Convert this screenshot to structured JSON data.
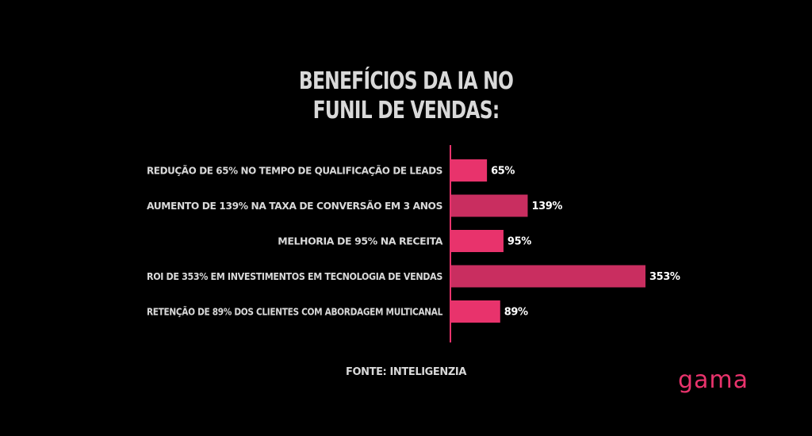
{
  "chart_data": {
    "type": "bar",
    "orientation": "horizontal",
    "title_lines": [
      "BENEFÍCIOS DA IA NO",
      "FUNIL DE VENDAS:"
    ],
    "categories": [
      "REDUÇÃO DE 65% NO TEMPO DE QUALIFICAÇÃO DE LEADS",
      "AUMENTO DE 139% NA TAXA DE CONVERSÃO EM 3 ANOS",
      "MELHORIA DE 95% NA RECEITA",
      "ROI DE 353% EM INVESTIMENTOS EM TECNOLOGIA DE VENDAS",
      "RETENÇÃO DE 89% DOS CLIENTES COM ABORDAGEM MULTICANAL"
    ],
    "values": [
      65,
      139,
      95,
      353,
      89
    ],
    "value_labels": [
      "65%",
      "139%",
      "95%",
      "353%",
      "89%"
    ],
    "xlim": [
      0,
      353
    ],
    "grid": false,
    "colors": {
      "bar": "#e8336c",
      "bar_highlight": "#c92e60",
      "axis": "#e8336c"
    },
    "highlighted_indices": [
      1,
      3
    ]
  },
  "source": "FONTE: INTELIGENZIA",
  "brand": "gama"
}
